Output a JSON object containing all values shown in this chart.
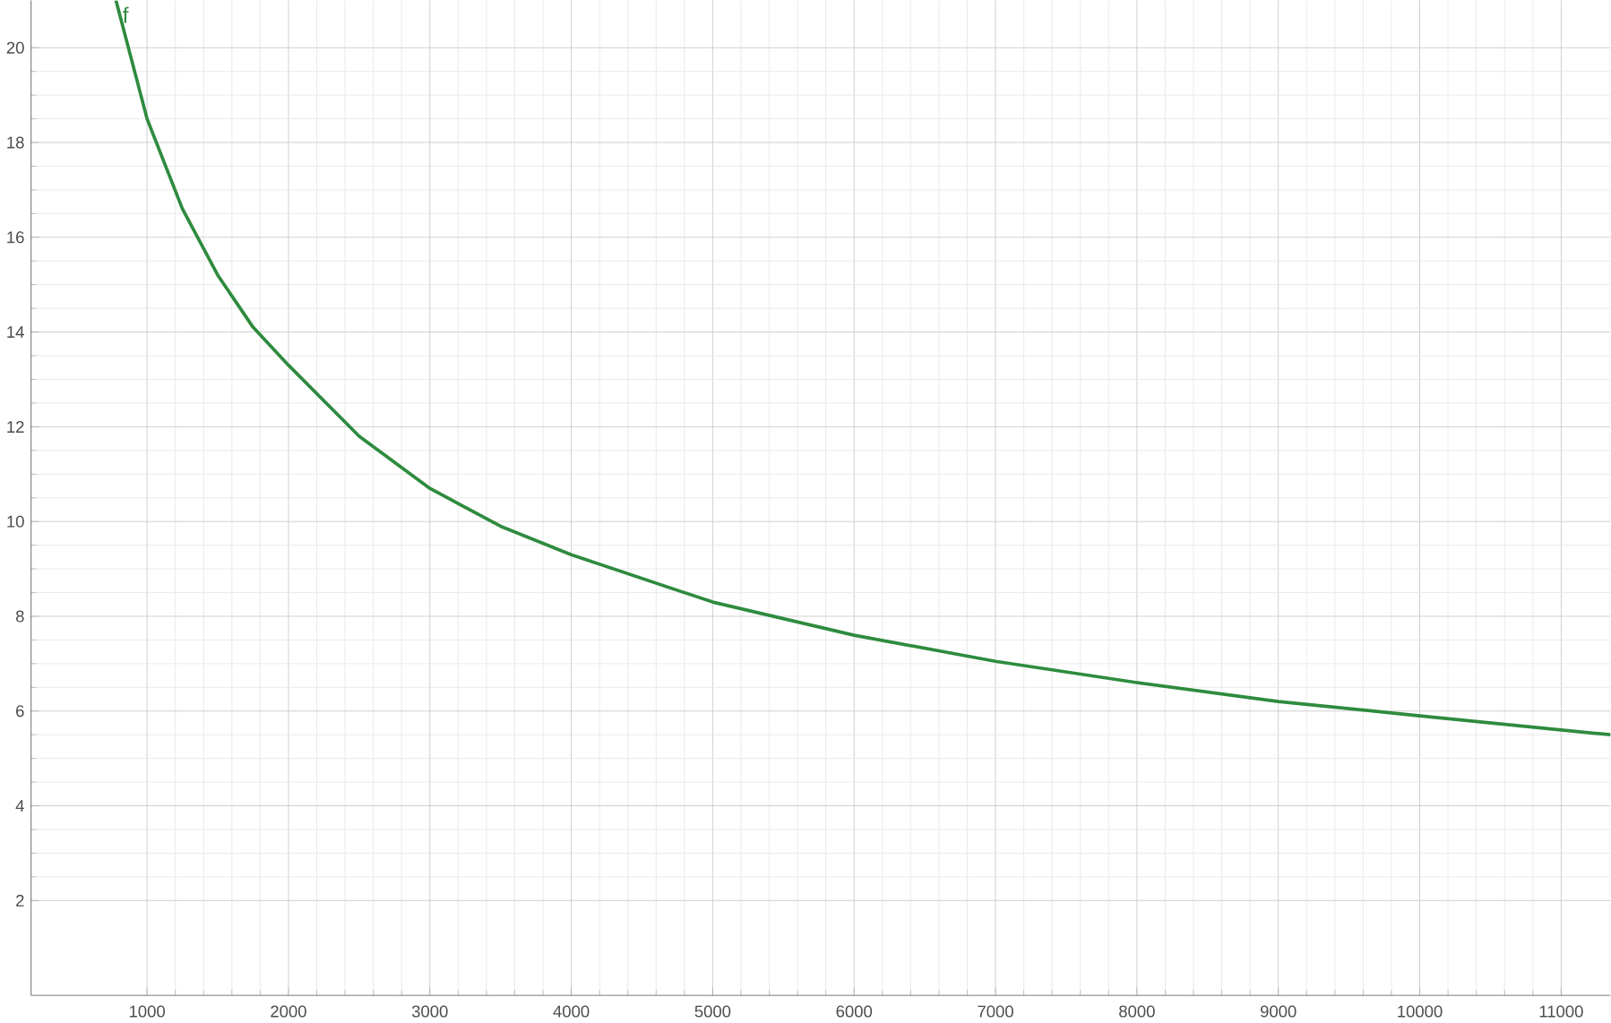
{
  "chart_data": {
    "type": "line",
    "x": [
      780,
      1000,
      1250,
      1500,
      1750,
      2000,
      2500,
      3000,
      3500,
      4000,
      5000,
      6000,
      7000,
      8000,
      9000,
      10000,
      11000,
      11350
    ],
    "series": [
      {
        "name": "f",
        "color": "#2e8b3e",
        "values": [
          21,
          18.5,
          16.6,
          15.2,
          14.1,
          13.3,
          11.8,
          10.7,
          9.9,
          9.3,
          8.3,
          7.6,
          7.05,
          6.6,
          6.2,
          5.9,
          5.6,
          5.5
        ]
      }
    ],
    "xlim": [
      180,
      11350
    ],
    "ylim": [
      0,
      21
    ],
    "xticks": [
      1000,
      2000,
      3000,
      4000,
      5000,
      6000,
      7000,
      8000,
      9000,
      10000,
      11000
    ],
    "yticks": [
      2,
      4,
      6,
      8,
      10,
      12,
      14,
      16,
      18,
      20
    ],
    "grid": true,
    "line_style": "solid",
    "marker": "none"
  }
}
